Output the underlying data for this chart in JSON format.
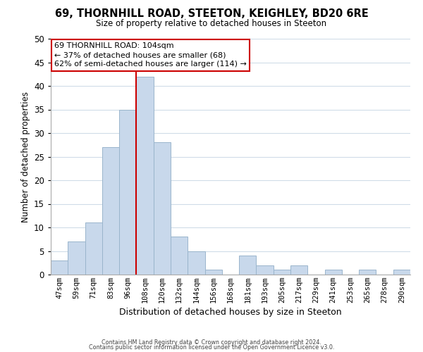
{
  "title": "69, THORNHILL ROAD, STEETON, KEIGHLEY, BD20 6RE",
  "subtitle": "Size of property relative to detached houses in Steeton",
  "xlabel": "Distribution of detached houses by size in Steeton",
  "ylabel": "Number of detached properties",
  "bar_color": "#c8d8eb",
  "bar_edge_color": "#9ab5cc",
  "categories": [
    "47sqm",
    "59sqm",
    "71sqm",
    "83sqm",
    "96sqm",
    "108sqm",
    "120sqm",
    "132sqm",
    "144sqm",
    "156sqm",
    "168sqm",
    "181sqm",
    "193sqm",
    "205sqm",
    "217sqm",
    "229sqm",
    "241sqm",
    "253sqm",
    "265sqm",
    "278sqm",
    "290sqm"
  ],
  "values": [
    3,
    7,
    11,
    27,
    35,
    42,
    28,
    8,
    5,
    1,
    0,
    4,
    2,
    1,
    2,
    0,
    1,
    0,
    1,
    0,
    1
  ],
  "ylim": [
    0,
    50
  ],
  "yticks": [
    0,
    5,
    10,
    15,
    20,
    25,
    30,
    35,
    40,
    45,
    50
  ],
  "vline_index": 5,
  "vline_color": "#cc0000",
  "annotation_title": "69 THORNHILL ROAD: 104sqm",
  "annotation_line1": "← 37% of detached houses are smaller (68)",
  "annotation_line2": "62% of semi-detached houses are larger (114) →",
  "annotation_box_color": "#ffffff",
  "annotation_box_edge": "#cc0000",
  "footer1": "Contains HM Land Registry data © Crown copyright and database right 2024.",
  "footer2": "Contains public sector information licensed under the Open Government Licence v3.0.",
  "background_color": "#ffffff",
  "grid_color": "#d0dce8"
}
